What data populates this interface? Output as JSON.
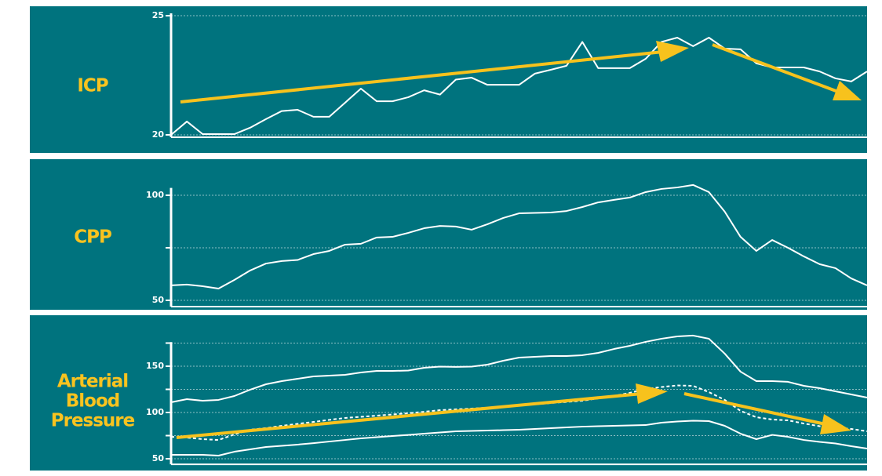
{
  "chart_data": [
    {
      "type": "line",
      "title": "ICP",
      "categories": [
        null,
        null,
        null,
        null,
        null,
        null,
        null,
        null,
        null,
        null,
        null,
        null,
        null,
        null,
        null,
        null,
        null,
        null,
        null,
        null,
        null,
        null,
        null,
        null,
        null,
        null,
        null,
        null,
        null,
        null,
        null,
        null,
        null,
        null,
        null,
        null,
        null,
        null,
        null,
        null,
        null,
        null,
        null,
        null,
        null
      ],
      "series": [
        {
          "color": "#ffffff",
          "values": [
            20.0,
            20.56,
            20.03,
            20.03,
            20.03,
            20.3,
            20.66,
            21.0,
            21.05,
            20.76,
            20.76,
            21.35,
            21.94,
            21.41,
            21.41,
            21.58,
            21.87,
            21.69,
            22.32,
            22.4,
            22.1,
            22.1,
            22.1,
            22.57,
            22.73,
            22.9,
            23.9,
            22.8,
            22.8,
            22.8,
            23.19,
            23.9,
            24.08,
            23.72,
            24.08,
            23.62,
            23.59,
            23.0,
            22.83,
            22.83,
            22.83,
            22.66,
            22.37,
            22.24,
            22.66
          ]
        }
      ],
      "ylim": [
        19.9,
        25.1
      ],
      "yticks": [
        20,
        25
      ],
      "grid": true
    },
    {
      "type": "line",
      "title": "CPP",
      "categories": [
        null,
        null,
        null,
        null,
        null,
        null,
        null,
        null,
        null,
        null,
        null,
        null,
        null,
        null,
        null,
        null,
        null,
        null,
        null,
        null,
        null,
        null,
        null,
        null,
        null,
        null,
        null,
        null,
        null,
        null,
        null,
        null,
        null,
        null,
        null,
        null,
        null,
        null,
        null,
        null,
        null,
        null,
        null,
        null,
        null
      ],
      "series": [
        {
          "color": "#ffffff",
          "values": [
            57.1,
            57.5,
            56.7,
            55.6,
            59.7,
            64.2,
            67.5,
            68.7,
            69.2,
            72.0,
            73.5,
            76.5,
            76.9,
            79.9,
            80.2,
            82.1,
            84.3,
            85.4,
            85.1,
            83.6,
            86.2,
            89.2,
            91.4,
            91.6,
            91.8,
            92.5,
            94.4,
            96.6,
            97.8,
            98.9,
            101.5,
            103.0,
            103.7,
            104.9,
            101.5,
            92.2,
            80.2,
            73.5,
            78.7,
            75.0,
            70.9,
            67.2,
            65.3,
            60.4,
            57.1
          ]
        }
      ],
      "ylim": [
        47,
        103.5
      ],
      "yticks": [
        50,
        100
      ],
      "minor_yticks": [
        75
      ],
      "grid": true
    },
    {
      "type": "line",
      "title": "Arterial Blood Pressure",
      "categories": [
        null,
        null,
        null,
        null,
        null,
        null,
        null,
        null,
        null,
        null,
        null,
        null,
        null,
        null,
        null,
        null,
        null,
        null,
        null,
        null,
        null,
        null,
        null,
        null,
        null,
        null,
        null,
        null,
        null,
        null,
        null,
        null,
        null,
        null,
        null,
        null,
        null,
        null,
        null,
        null,
        null,
        null,
        null,
        null,
        null
      ],
      "series": [
        {
          "color": "#ffffff",
          "values": [
            111.0,
            114.4,
            112.7,
            113.6,
            117.8,
            124.6,
            130.5,
            133.9,
            136.4,
            139.0,
            139.8,
            140.7,
            143.2,
            144.9,
            144.9,
            145.3,
            148.3,
            149.6,
            149.2,
            149.6,
            151.7,
            155.9,
            159.3,
            160.2,
            161.0,
            161.0,
            161.9,
            164.4,
            168.6,
            172.0,
            176.3,
            179.7,
            182.2,
            183.1,
            179.7,
            163.6,
            144.1,
            133.9,
            133.9,
            133.1,
            128.8,
            126.3,
            122.9,
            119.5,
            116.1
          ]
        },
        {
          "color": "#ffffff",
          "dashed": true,
          "values": [
            73.7,
            72.9,
            71.2,
            70.3,
            76.3,
            81.4,
            83.1,
            85.6,
            87.7,
            89.8,
            92.0,
            94.1,
            95.3,
            96.6,
            97.9,
            99.2,
            100.8,
            102.5,
            103.4,
            104.2,
            105.1,
            106.4,
            107.6,
            108.9,
            110.2,
            111.4,
            112.7,
            115.3,
            117.8,
            121.2,
            125.4,
            127.5,
            129.2,
            128.8,
            122.0,
            113.6,
            101.7,
            94.9,
            92.4,
            91.5,
            88.1,
            85.2,
            83.5,
            82.2,
            79.7
          ]
        },
        {
          "color": "#ffffff",
          "values": [
            54.2,
            54.2,
            54.2,
            53.4,
            57.6,
            60.2,
            62.7,
            64.0,
            65.3,
            66.9,
            68.6,
            70.3,
            72.0,
            73.3,
            74.6,
            75.8,
            77.1,
            78.4,
            79.7,
            80.1,
            80.5,
            80.9,
            81.4,
            82.2,
            83.1,
            83.9,
            84.7,
            85.2,
            85.6,
            86.0,
            86.4,
            89.0,
            90.3,
            91.1,
            90.7,
            85.6,
            77.1,
            71.2,
            75.8,
            73.7,
            70.3,
            68.2,
            66.5,
            63.6,
            61.0
          ]
        }
      ],
      "ylim": [
        44,
        176
      ],
      "yticks": [
        50,
        100,
        150
      ],
      "minor_yticks": [
        75,
        125,
        175
      ],
      "grid": true
    }
  ]
}
